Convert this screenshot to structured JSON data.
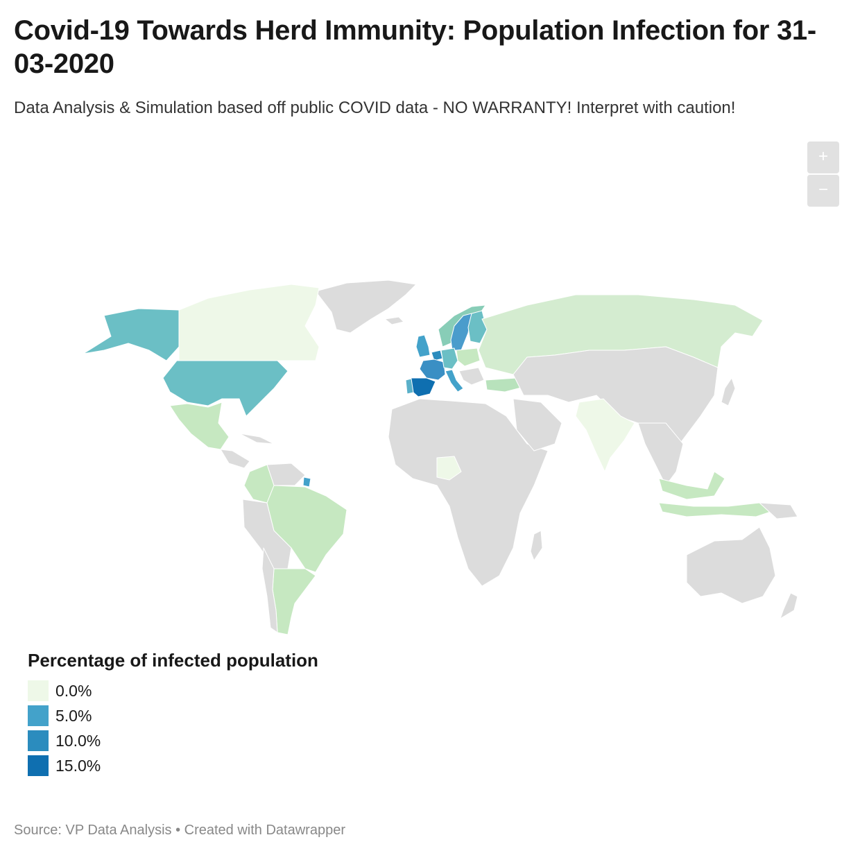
{
  "header": {
    "title": "Covid-19 Towards Herd Immunity: Population Infection for 31-03-2020",
    "subtitle": "Data Analysis & Simulation based off public COVID data - NO WARRANTY! Interpret with caution!"
  },
  "zoom_controls": {
    "zoom_in_label": "+",
    "zoom_out_label": "−"
  },
  "legend": {
    "title": "Percentage of infected population",
    "items": [
      {
        "label": "0.0%",
        "color": "#eef8e8"
      },
      {
        "label": "5.0%",
        "color": "#43a2ca"
      },
      {
        "label": "10.0%",
        "color": "#2b8cbe"
      },
      {
        "label": "15.0%",
        "color": "#0f6fb0"
      }
    ]
  },
  "map": {
    "no_data_color": "#dcdcdc",
    "stroke_color": "#ffffff",
    "regions": [
      {
        "name": "Canada",
        "bin": "0-1",
        "color": "#eef8e8"
      },
      {
        "name": "Alaska (USA)",
        "bin": "2-4",
        "color": "#6bbfc5"
      },
      {
        "name": "United States",
        "bin": "2-4",
        "color": "#6bbfc5"
      },
      {
        "name": "Mexico",
        "bin": "1-2",
        "color": "#c6e8c1"
      },
      {
        "name": "Brazil",
        "bin": "1-2",
        "color": "#c6e8c1"
      },
      {
        "name": "Argentina",
        "bin": "1-2",
        "color": "#c6e8c1"
      },
      {
        "name": "Colombia",
        "bin": "1-2",
        "color": "#c6e8c1"
      },
      {
        "name": "French Guiana",
        "bin": "5-9",
        "color": "#43a2ca"
      },
      {
        "name": "Russia",
        "bin": "1-2",
        "color": "#d4ecd0"
      },
      {
        "name": "Spain",
        "bin": "15+",
        "color": "#0f6fb0"
      },
      {
        "name": "France",
        "bin": "5-9",
        "color": "#3a8fc4"
      },
      {
        "name": "Italy",
        "bin": "5-9",
        "color": "#43a2ca"
      },
      {
        "name": "United Kingdom",
        "bin": "5-9",
        "color": "#43a2ca"
      },
      {
        "name": "Belgium / Netherlands",
        "bin": "10-14",
        "color": "#2b8cbe"
      },
      {
        "name": "Sweden",
        "bin": "5-9",
        "color": "#4a9ccc"
      },
      {
        "name": "Norway",
        "bin": "2-4",
        "color": "#88cdb7"
      },
      {
        "name": "Finland",
        "bin": "2-4",
        "color": "#6bbfc5"
      },
      {
        "name": "Germany",
        "bin": "2-4",
        "color": "#6bbfc5"
      },
      {
        "name": "Portugal",
        "bin": "5-9",
        "color": "#5ab0c9"
      },
      {
        "name": "Poland",
        "bin": "1-2",
        "color": "#c6e8c1"
      },
      {
        "name": "Turkey",
        "bin": "1-2",
        "color": "#b8e2bc"
      },
      {
        "name": "India",
        "bin": "0-1",
        "color": "#eef8e8"
      },
      {
        "name": "Nigeria",
        "bin": "0-1",
        "color": "#eef8e8"
      },
      {
        "name": "Indonesia",
        "bin": "1-2",
        "color": "#c6e8c1"
      },
      {
        "name": "Malaysia / Philippines",
        "bin": "1-2",
        "color": "#c6e8c1"
      }
    ]
  },
  "footer": {
    "source": "Source: VP Data Analysis • Created with Datawrapper"
  }
}
